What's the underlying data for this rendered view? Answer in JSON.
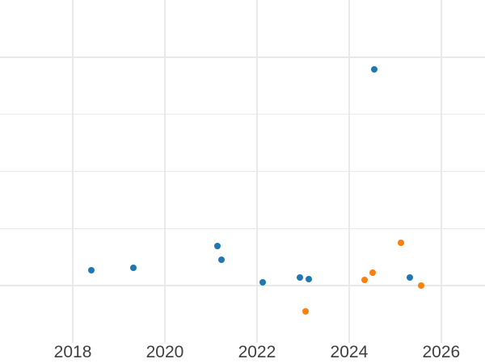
{
  "chart_data": {
    "type": "scatter",
    "title": "",
    "xlabel": "",
    "ylabel": "",
    "x_tick_labels": [
      "2018",
      "2020",
      "2022",
      "2024",
      "2026"
    ],
    "x_tick_values": [
      2018,
      2020,
      2022,
      2024,
      2026
    ],
    "xlim": [
      2016.42,
      2026.95
    ],
    "ylim": [
      0,
      6
    ],
    "y_axis_note": "no y-axis tick labels visible in screenshot; y values estimated in gridline units (1 unit = one horizontal gridline spacing, bottom edge = 0)",
    "horizontal_gridline_units": [
      1,
      2,
      3,
      4,
      5
    ],
    "grid": true,
    "legend": false,
    "series": [
      {
        "name": "blue",
        "color": "#1f77b4",
        "points": [
          {
            "x": 2018.4,
            "y": 1.27
          },
          {
            "x": 2019.32,
            "y": 1.31
          },
          {
            "x": 2021.14,
            "y": 1.69
          },
          {
            "x": 2021.23,
            "y": 1.45
          },
          {
            "x": 2022.12,
            "y": 1.06
          },
          {
            "x": 2022.93,
            "y": 1.14
          },
          {
            "x": 2023.12,
            "y": 1.12
          },
          {
            "x": 2024.54,
            "y": 4.79
          },
          {
            "x": 2025.32,
            "y": 1.14
          }
        ]
      },
      {
        "name": "orange",
        "color": "#ff7f0e",
        "points": [
          {
            "x": 2023.05,
            "y": 0.55
          },
          {
            "x": 2024.33,
            "y": 1.1
          },
          {
            "x": 2024.51,
            "y": 1.23
          },
          {
            "x": 2025.12,
            "y": 1.75
          },
          {
            "x": 2025.56,
            "y": 1.0
          }
        ]
      }
    ],
    "styles": {
      "background": "#ffffff",
      "grid_color": "#e9e9e9",
      "tick_label_color": "#3f3f3f"
    }
  }
}
